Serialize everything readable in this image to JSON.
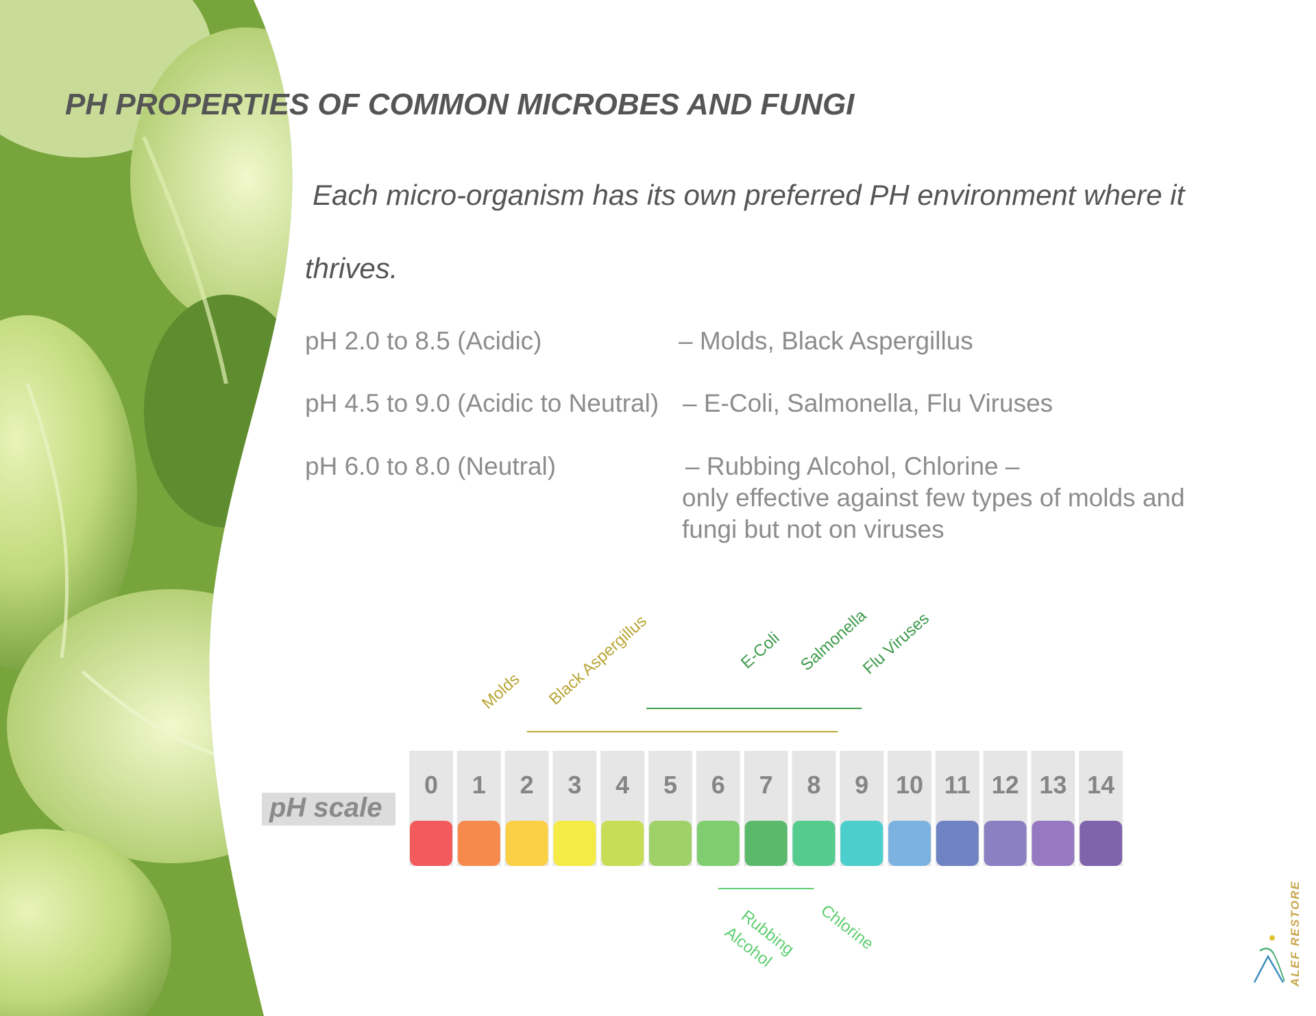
{
  "title": "PH PROPERTIES OF COMMON MICROBES AND FUNGI",
  "intro": {
    "line1": "Each micro-organism has its own preferred PH environment where it",
    "line2": "thrives."
  },
  "ranges": [
    {
      "range": "pH 2.0 to 8.5 (Acidic)",
      "desc": "– Molds, Black Aspergillus"
    },
    {
      "range": "pH 4.5 to 9.0 (Acidic to Neutral)",
      "desc": "– E-Coli, Salmonella, Flu Viruses"
    },
    {
      "range": "pH 6.0 to 8.0 (Neutral)",
      "desc": "– Rubbing Alcohol, Chlorine –",
      "desc2": "only effective against few types of molds and",
      "desc3": "fungi but not on viruses"
    }
  ],
  "scale": {
    "label": "pH scale",
    "numbers": [
      "0",
      "1",
      "2",
      "3",
      "4",
      "5",
      "6",
      "7",
      "8",
      "9",
      "10",
      "11",
      "12",
      "13",
      "14"
    ],
    "colors": [
      "#f25a5c",
      "#f58a4c",
      "#fbd045",
      "#f4ec45",
      "#c7dd55",
      "#9fd169",
      "#7fcd6f",
      "#5bb96b",
      "#55cb8e",
      "#4ccecd",
      "#7cb2e0",
      "#6f82c2",
      "#8b81c2",
      "#9679c0",
      "#7f64ab"
    ]
  },
  "microbes": [
    {
      "name": "Molds",
      "color": "#b8a534"
    },
    {
      "name": "Black Aspergillus",
      "color": "#b8a534"
    },
    {
      "name": "E-Coli",
      "color": "#3d9a4a"
    },
    {
      "name": "Salmonella",
      "color": "#3d9a4a"
    },
    {
      "name": "Flu Viruses",
      "color": "#3d9a4a"
    }
  ],
  "bands": [
    {
      "from": 2.0,
      "to": 8.5,
      "color": "#b8a534"
    },
    {
      "from": 4.5,
      "to": 9.0,
      "color": "#3d9a4a"
    },
    {
      "from": 6.0,
      "to": 8.0,
      "color": "#5fce6f"
    }
  ],
  "disinfectants": [
    {
      "name": "Rubbing",
      "name2": "Alcohol",
      "color": "#5fce6f"
    },
    {
      "name": "Chlorine",
      "color": "#5fce6f"
    }
  ],
  "brand": "ALEF RESTORE",
  "accent": "#c9a64a"
}
